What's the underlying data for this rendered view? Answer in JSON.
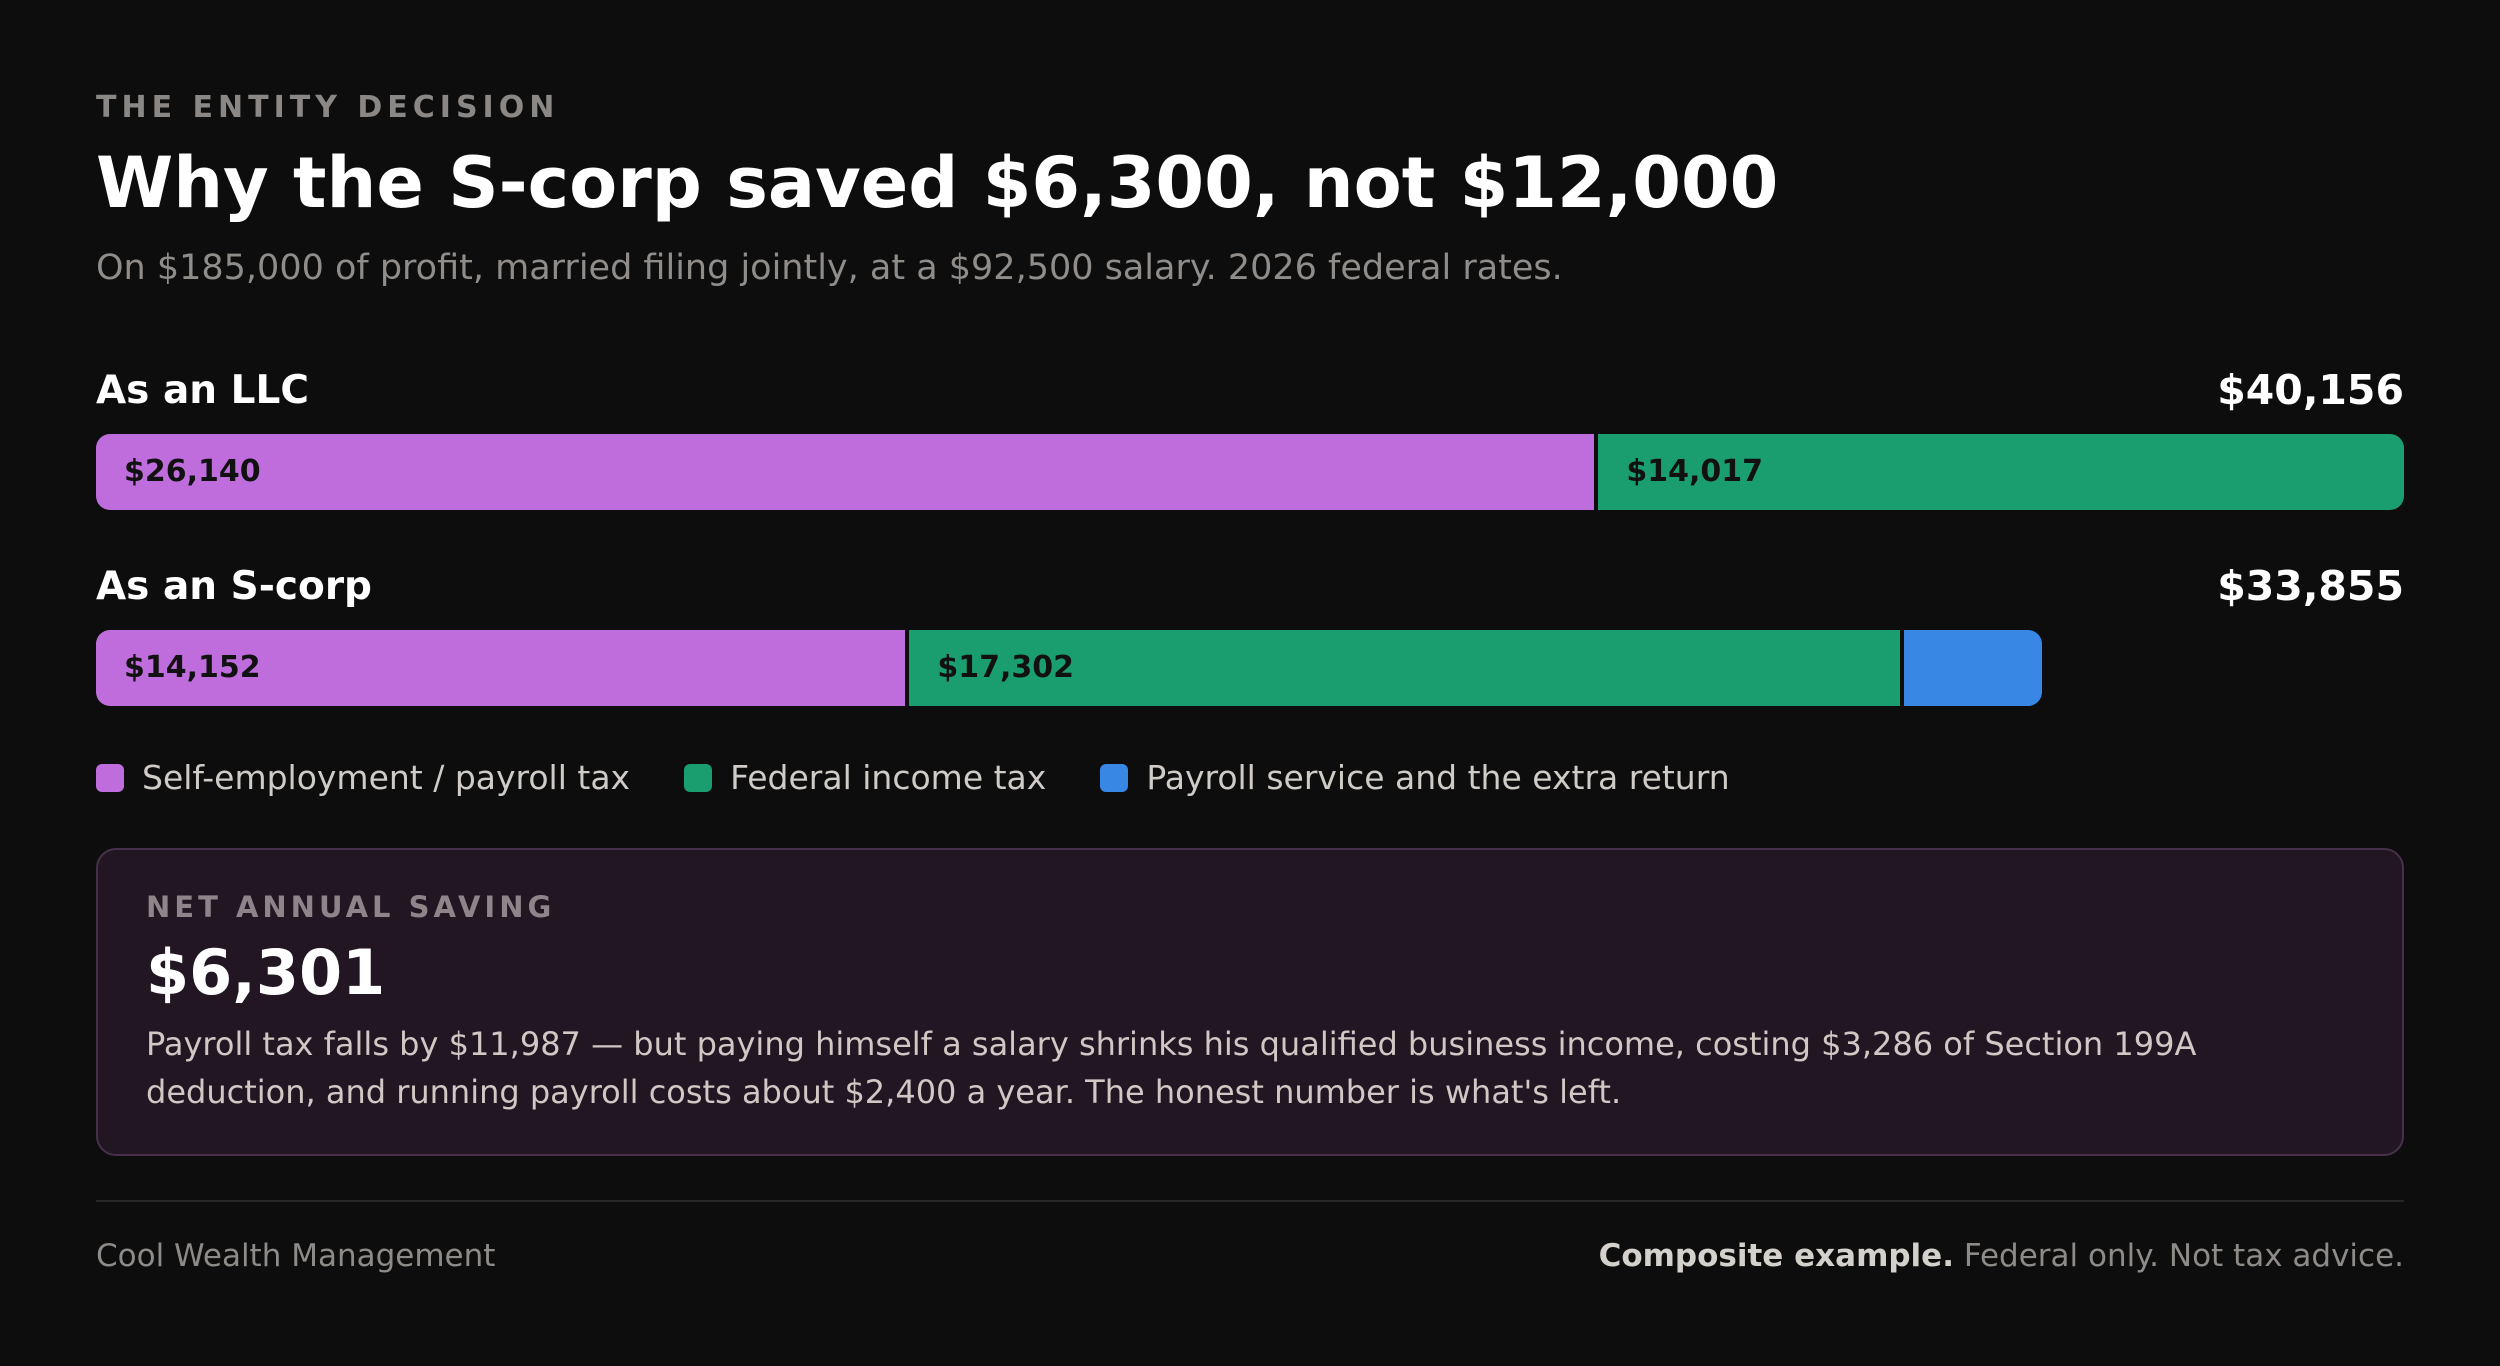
{
  "header": {
    "eyebrow": "THE ENTITY DECISION",
    "title": "Why the S-corp saved $6,300, not $12,000",
    "subtitle": "On $185,000 of profit, married filing jointly, at a $92,500 salary. 2026 federal rates."
  },
  "chart_data": {
    "type": "bar",
    "orientation": "horizontal",
    "stacked": true,
    "scale_max": 40156,
    "categories": [
      "As an LLC",
      "As an S-corp"
    ],
    "totals": [
      "$40,156",
      "$33,855"
    ],
    "series": [
      {
        "name": "Self-employment / payroll tax",
        "color": "#bf6ddd",
        "values": [
          26140,
          14152
        ],
        "labels": [
          "$26,140",
          "$14,152"
        ]
      },
      {
        "name": "Federal income tax",
        "color": "#1a9e70",
        "values": [
          14017,
          17302
        ],
        "labels": [
          "$14,017",
          "$17,302"
        ]
      },
      {
        "name": "Payroll service and the extra return",
        "color": "#3987e5",
        "values": [
          0,
          2401
        ],
        "labels": [
          "",
          ""
        ]
      }
    ],
    "legend_position": "bottom-left"
  },
  "card": {
    "eyebrow": "NET ANNUAL SAVING",
    "value": "$6,301",
    "text": "Payroll tax falls by $11,987 — but paying himself a salary shrinks his qualified business income, costing $3,286 of Section 199A deduction, and running payroll costs about $2,400 a year. The honest number is what's left."
  },
  "footer": {
    "left": "Cool Wealth Management",
    "right_bold": "Composite example.",
    "right_rest": " Federal only. Not tax advice."
  }
}
